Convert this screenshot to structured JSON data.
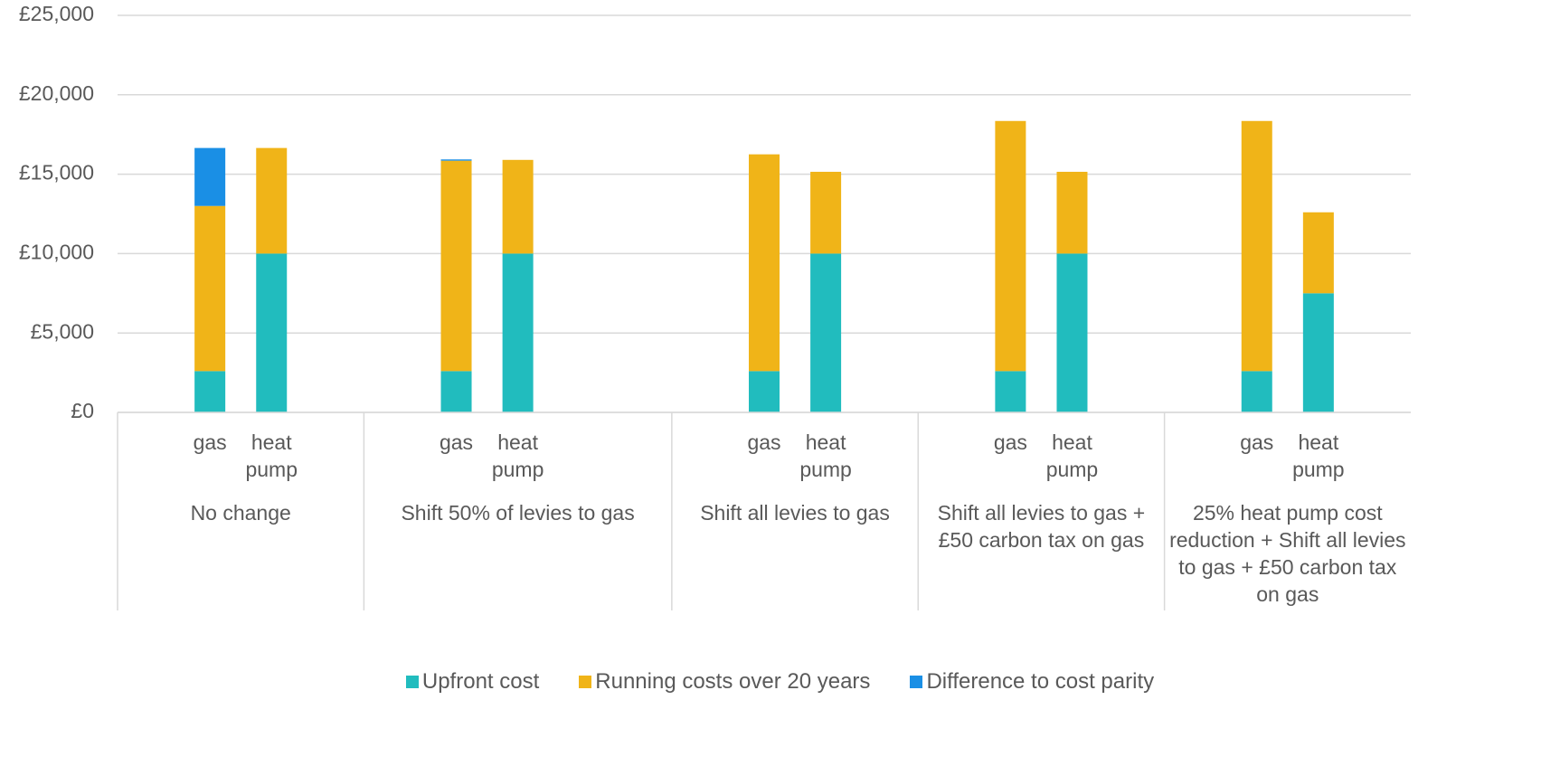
{
  "chart_data": {
    "type": "stacked_bar",
    "categories": [
      null,
      "gas",
      "heat pump",
      null,
      null,
      "gas",
      "heat pump",
      null,
      null,
      null,
      "gas",
      "heat pump",
      null,
      null,
      "gas",
      "heat pump",
      null,
      null,
      "gas",
      "heat pump",
      null
    ],
    "groups": [
      {
        "label": "No change",
        "span": 4
      },
      {
        "label": "Shift 50% of levies to gas",
        "span": 5
      },
      {
        "label": "Shift all levies to gas",
        "span": 4
      },
      {
        "label": "Shift all levies to gas + £50 carbon tax on gas",
        "span": 4
      },
      {
        "label": "25% heat pump cost reduction + Shift all levies to gas + £50 carbon tax on gas",
        "span": 4
      }
    ],
    "series": [
      {
        "name": "Upfront cost",
        "color": "#21bcbe",
        "values": [
          null,
          2600,
          10000,
          null,
          null,
          2600,
          10000,
          null,
          null,
          null,
          2600,
          10000,
          null,
          null,
          2600,
          10000,
          null,
          null,
          2600,
          7500,
          null
        ]
      },
      {
        "name": "Running costs over 20 years",
        "color": "#f0b418",
        "values": [
          null,
          10400,
          6650,
          null,
          null,
          13250,
          5900,
          null,
          null,
          null,
          13650,
          5150,
          null,
          null,
          15750,
          5150,
          null,
          null,
          15750,
          5100,
          null
        ]
      },
      {
        "name": "Difference to cost parity",
        "color": "#1a8fe5",
        "values": [
          null,
          3650,
          0,
          null,
          null,
          80,
          0,
          null,
          null,
          null,
          0,
          0,
          null,
          null,
          0,
          0,
          null,
          null,
          0,
          0,
          null
        ]
      }
    ],
    "ylim": [
      0,
      25000
    ],
    "yticks": [
      {
        "value": 0,
        "label": "£0"
      },
      {
        "value": 5000,
        "label": "£5,000"
      },
      {
        "value": 10000,
        "label": "£10,000"
      },
      {
        "value": 15000,
        "label": "£15,000"
      },
      {
        "value": 20000,
        "label": "£20,000"
      },
      {
        "value": 25000,
        "label": "£25,000"
      }
    ],
    "grid": true,
    "legend": "bottom"
  }
}
